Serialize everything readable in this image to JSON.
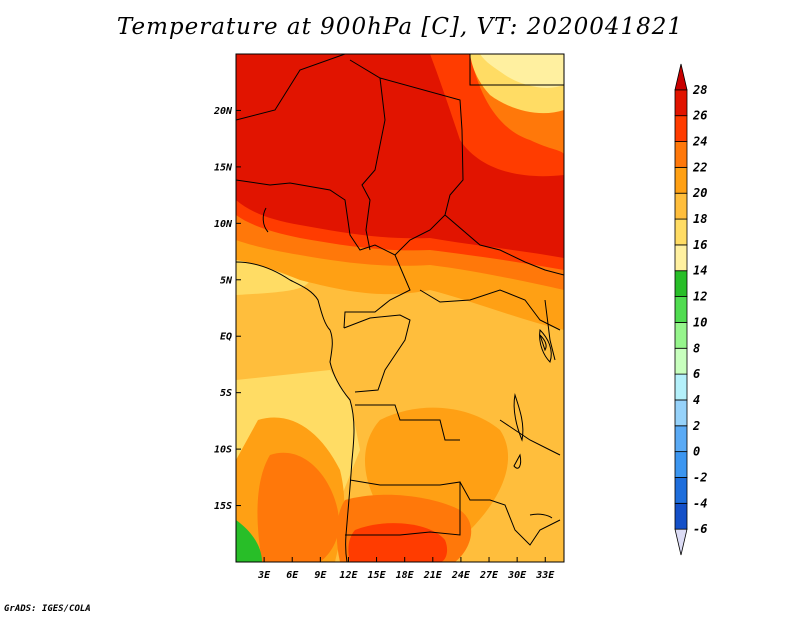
{
  "title": "Temperature at 900hPa [C], VT: 2020041821",
  "credit": "GrADS: IGES/COLA",
  "map": {
    "lon_range": [
      0,
      35
    ],
    "lat_range": [
      -20,
      25
    ],
    "lat_ticks": [
      {
        "value": 20,
        "label": "20N"
      },
      {
        "value": 15,
        "label": "15N"
      },
      {
        "value": 10,
        "label": "10N"
      },
      {
        "value": 5,
        "label": "5N"
      },
      {
        "value": 0,
        "label": "EQ"
      },
      {
        "value": -5,
        "label": "5S"
      },
      {
        "value": -10,
        "label": "10S"
      },
      {
        "value": -15,
        "label": "15S"
      }
    ],
    "lon_ticks": [
      {
        "value": 3,
        "label": "3E"
      },
      {
        "value": 6,
        "label": "6E"
      },
      {
        "value": 9,
        "label": "9E"
      },
      {
        "value": 12,
        "label": "12E"
      },
      {
        "value": 15,
        "label": "15E"
      },
      {
        "value": 18,
        "label": "18E"
      },
      {
        "value": 21,
        "label": "21E"
      },
      {
        "value": 24,
        "label": "24E"
      },
      {
        "value": 27,
        "label": "27E"
      },
      {
        "value": 30,
        "label": "30E"
      },
      {
        "value": 33,
        "label": "33E"
      }
    ]
  },
  "colorbar": {
    "colors": [
      "#1e1e8c",
      "#1450c8",
      "#1e6edc",
      "#3c96f0",
      "#5aaaf5",
      "#96d2fa",
      "#b4f0fa",
      "#c8ffbe",
      "#96f58c",
      "#50dc50",
      "#28be28",
      "#fff0a0",
      "#ffdc64",
      "#ffbe3c",
      "#ffa014",
      "#ff780a",
      "#ff3c00",
      "#e11400",
      "#c80000"
    ],
    "labels": [
      "-6",
      "-4",
      "-2",
      "0",
      "2",
      "4",
      "6",
      "8",
      "10",
      "12",
      "14",
      "16",
      "18",
      "20",
      "22",
      "24",
      "26",
      "28"
    ]
  }
}
